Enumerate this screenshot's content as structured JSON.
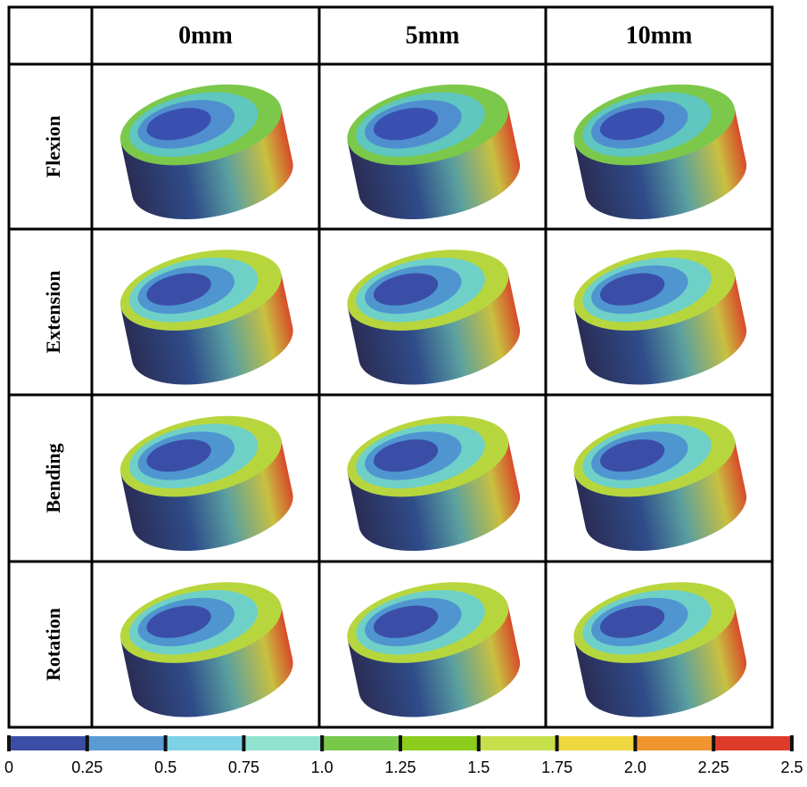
{
  "table": {
    "columns": [
      "0mm",
      "5mm",
      "10mm"
    ],
    "rows": [
      "Flexion",
      "Extension",
      "Bending",
      "Rotation"
    ]
  },
  "colorbar": {
    "ticks": [
      0,
      0.25,
      0.5,
      0.75,
      {
        "value": 1,
        "label": "1.0"
      },
      1.25,
      1.5,
      1.75,
      {
        "value": 2,
        "label": "2.0"
      },
      2.25,
      2.5
    ],
    "colors": [
      "#3b4ea6",
      "#5a9bd4",
      "#7fd2e5",
      "#8fe3cf",
      "#78c84a",
      "#8ccc1c",
      "#c6df4a",
      "#eed73f",
      "#ef9530",
      "#df3b2b"
    ]
  }
}
